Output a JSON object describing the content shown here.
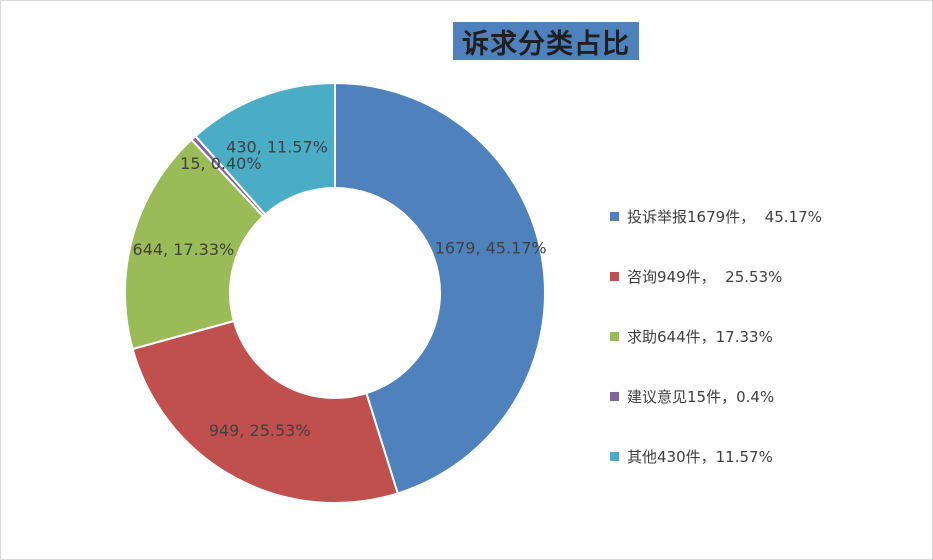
{
  "chart_data": {
    "type": "pie",
    "subtype": "donut",
    "title": "诉求分类占比",
    "slices": [
      {
        "name": "投诉举报",
        "value": 1679,
        "percent": 45.17,
        "color": "#4f81bd",
        "data_label": "1679, 45.17%",
        "legend_label": "投诉举报1679件，  45.17%"
      },
      {
        "name": "咨询",
        "value": 949,
        "percent": 25.53,
        "color": "#c0504d",
        "data_label": "949, 25.53%",
        "legend_label": "咨询949件，  25.53%"
      },
      {
        "name": "求助",
        "value": 644,
        "percent": 17.33,
        "color": "#9bbb59",
        "data_label": "644, 17.33%",
        "legend_label": "求助644件，17.33%"
      },
      {
        "name": "建议意见",
        "value": 15,
        "percent": 0.4,
        "color": "#8064a2",
        "data_label": "15, 0.40%",
        "legend_label": "建议意见15件，0.4%"
      },
      {
        "name": "其他",
        "value": 430,
        "percent": 11.57,
        "color": "#4bacc6",
        "data_label": "430, 11.57%",
        "legend_label": "其他430件，11.57%"
      }
    ],
    "legend_position": "right"
  }
}
